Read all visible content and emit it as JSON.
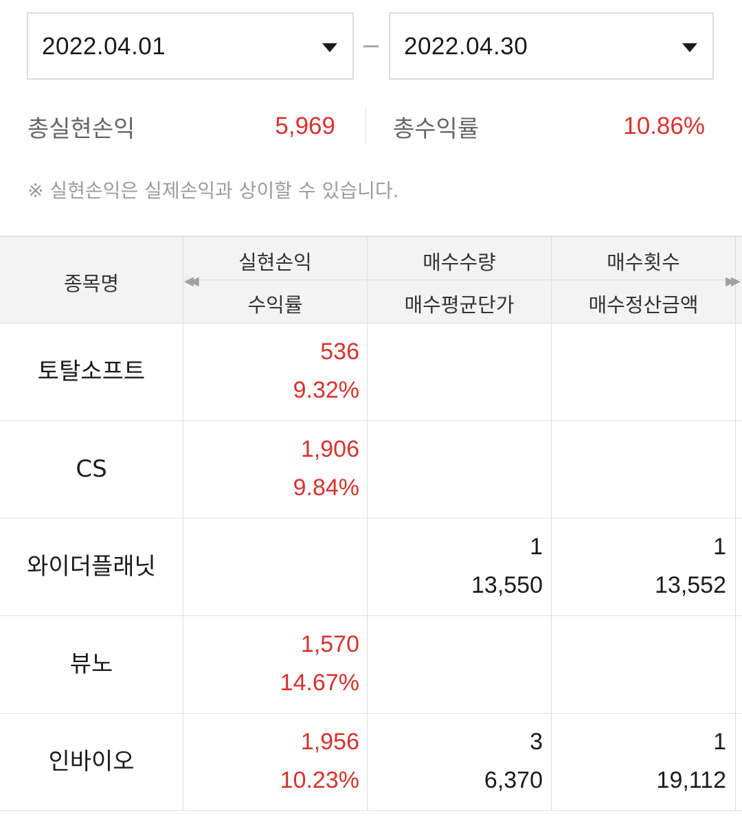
{
  "date_range": {
    "start": "2022.04.01",
    "end": "2022.04.30"
  },
  "summary": {
    "total_realized_pl_label": "총실현손익",
    "total_realized_pl_value": "5,969",
    "total_return_rate_label": "총수익률",
    "total_return_rate_value": "10.86%"
  },
  "notice": "※ 실현손익은 실제손익과 상이할 수 있습니다.",
  "table": {
    "headers": {
      "name": "종목명",
      "col1_top": "실현손익",
      "col1_bottom": "수익률",
      "col2_top": "매수수량",
      "col2_bottom": "매수평균단가",
      "col3_top": "매수횟수",
      "col3_bottom": "매수정산금액"
    },
    "rows": [
      {
        "name": "토탈소프트",
        "realized_pl": "536",
        "return_rate": "9.32%",
        "buy_qty": "",
        "buy_avg_price": "",
        "buy_count": "",
        "buy_settle_amount": ""
      },
      {
        "name": "CS",
        "realized_pl": "1,906",
        "return_rate": "9.84%",
        "buy_qty": "",
        "buy_avg_price": "",
        "buy_count": "",
        "buy_settle_amount": ""
      },
      {
        "name": "와이더플래닛",
        "realized_pl": "",
        "return_rate": "",
        "buy_qty": "1",
        "buy_avg_price": "13,550",
        "buy_count": "1",
        "buy_settle_amount": "13,552"
      },
      {
        "name": "뷰노",
        "realized_pl": "1,570",
        "return_rate": "14.67%",
        "buy_qty": "",
        "buy_avg_price": "",
        "buy_count": "",
        "buy_settle_amount": ""
      },
      {
        "name": "인바이오",
        "realized_pl": "1,956",
        "return_rate": "10.23%",
        "buy_qty": "3",
        "buy_avg_price": "6,370",
        "buy_count": "1",
        "buy_settle_amount": "19,112"
      }
    ]
  },
  "icons": {
    "date_dropdown": "caret-down-icon",
    "scroll_left": "double-chevron-left-icon",
    "scroll_right": "double-chevron-right-icon"
  },
  "colors": {
    "positive": "#d6322e",
    "header_bg": "#f3f3f3",
    "border": "#dcdcdc"
  }
}
